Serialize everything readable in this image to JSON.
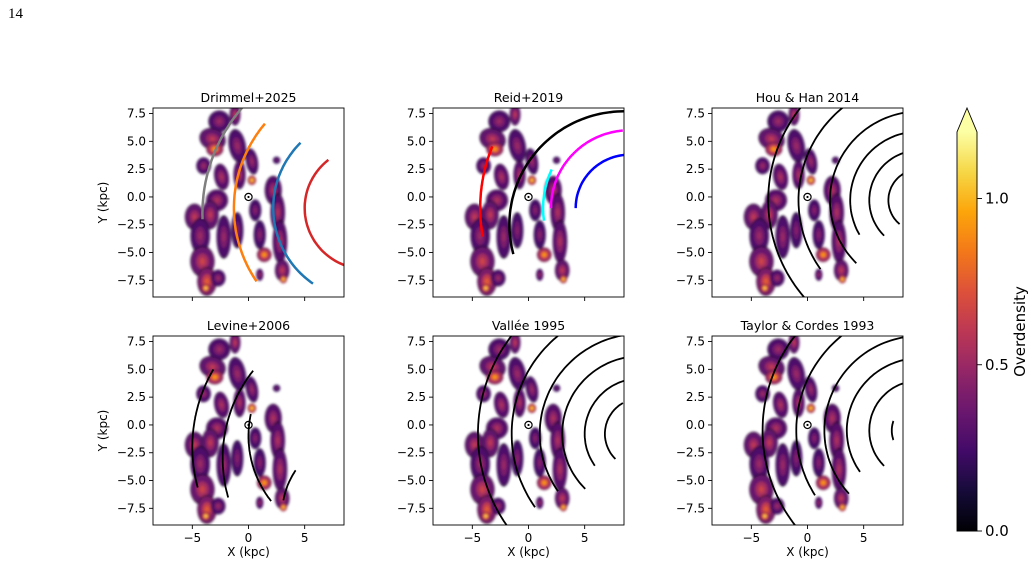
{
  "page": {
    "number": "14"
  },
  "colors": {
    "background": "#ffffff",
    "axis": "#000000",
    "sun_marker": "#000000"
  },
  "colorbar": {
    "label": "Overdensity",
    "colormap": "inferno",
    "range": [
      0.0,
      1.2
    ],
    "extend": "max",
    "ticks": [
      {
        "value": 0.0,
        "label": "0.0"
      },
      {
        "value": 0.5,
        "label": "0.5"
      },
      {
        "value": 1.0,
        "label": "1.0"
      }
    ]
  },
  "chart_data": [
    {
      "type": "heatmap",
      "title": "Drimmel+2025",
      "xlabel": "",
      "ylabel": "Y (kpc)",
      "xlim": [
        -8.5,
        8.5
      ],
      "ylim": [
        -9,
        8
      ],
      "xticks": [
        {
          "value": -5,
          "label": "−5"
        },
        {
          "value": 0,
          "label": "0"
        },
        {
          "value": 5,
          "label": "5"
        }
      ],
      "yticks": [
        {
          "value": 7.5,
          "label": "7.5"
        },
        {
          "value": 5.0,
          "label": "5.0"
        },
        {
          "value": 2.5,
          "label": "2.5"
        },
        {
          "value": 0.0,
          "label": "0.0"
        },
        {
          "value": -2.5,
          "label": "−2.5"
        },
        {
          "value": -5.0,
          "label": "−5.0"
        },
        {
          "value": -7.5,
          "label": "−7.5"
        }
      ],
      "sun": [
        0,
        0
      ],
      "arms": [
        {
          "color": "#7f7f7f",
          "width": 2.5,
          "dashed_from": 135,
          "c": [
            10.5,
            -1.5
          ],
          "r": 14.6,
          "from": 182,
          "to": 135
        },
        {
          "color": "#ff7f0e",
          "width": 2.5,
          "dashed_from": 140,
          "c": [
            10.5,
            -1.0
          ],
          "r": 11.8,
          "from": 214,
          "to": 140
        },
        {
          "color": "#1f77b4",
          "width": 2.5,
          "dashed_from": 135,
          "c": [
            10.5,
            -1.0
          ],
          "r": 8.3,
          "from": 235,
          "to": 135
        },
        {
          "color": "#d62728",
          "width": 2.5,
          "dashed_from": 128,
          "c": [
            10.5,
            -1.0
          ],
          "r": 5.5,
          "from": 265,
          "to": 128
        }
      ]
    },
    {
      "type": "heatmap",
      "title": "Reid+2019",
      "xlabel": "",
      "ylabel": "",
      "xlim": [
        -8.5,
        8.5
      ],
      "ylim": [
        -9,
        8
      ],
      "xticks": [
        {
          "value": -5,
          "label": "−5"
        },
        {
          "value": 0,
          "label": "0"
        },
        {
          "value": 5,
          "label": "5"
        }
      ],
      "yticks": [
        {
          "value": 7.5,
          "label": "7.5"
        },
        {
          "value": 5.0,
          "label": "5.0"
        },
        {
          "value": 2.5,
          "label": "2.5"
        },
        {
          "value": 0.0,
          "label": "0.0"
        },
        {
          "value": -2.5,
          "label": "−2.5"
        },
        {
          "value": -5.0,
          "label": "−5.0"
        },
        {
          "value": -7.5,
          "label": "−7.5"
        }
      ],
      "sun": [
        0,
        0
      ],
      "arms": [
        {
          "color": "#ff0000",
          "width": 2.5,
          "c": [
            10.5,
            -1.0
          ],
          "r": 14.8,
          "from": 190,
          "to": 158
        },
        {
          "color": "#000000",
          "width": 2.5,
          "c": [
            8.5,
            -2.5
          ],
          "r": 10.2,
          "from": 195,
          "to": 90
        },
        {
          "color": "#00ffff",
          "width": 2.5,
          "c": [
            9.5,
            -1.0
          ],
          "r": 8.2,
          "from": 188,
          "to": 155
        },
        {
          "color": "#ff00ff",
          "width": 2.5,
          "c": [
            9.0,
            -1.0
          ],
          "r": 7.0,
          "from": 180,
          "to": 95
        },
        {
          "color": "#0000ff",
          "width": 2.5,
          "c": [
            9.0,
            -1.0
          ],
          "r": 4.8,
          "from": 180,
          "to": 95
        }
      ]
    },
    {
      "type": "heatmap",
      "title": "Hou & Han 2014",
      "xlabel": "",
      "ylabel": "",
      "xlim": [
        -8.5,
        8.5
      ],
      "ylim": [
        -9,
        8
      ],
      "xticks": [
        {
          "value": -5,
          "label": "−5"
        },
        {
          "value": 0,
          "label": "0"
        },
        {
          "value": 5,
          "label": "5"
        }
      ],
      "yticks": [
        {
          "value": 7.5,
          "label": "7.5"
        },
        {
          "value": 5.0,
          "label": "5.0"
        },
        {
          "value": 2.5,
          "label": "2.5"
        },
        {
          "value": 0.0,
          "label": "0.0"
        },
        {
          "value": -2.5,
          "label": "−2.5"
        },
        {
          "value": -5.0,
          "label": "−5.0"
        },
        {
          "value": -7.5,
          "label": "−7.5"
        }
      ],
      "sun": [
        0,
        0
      ],
      "arms": [
        {
          "color": "#000000",
          "width": 1.8,
          "c": [
            10.0,
            -0.3
          ],
          "r": 13.5,
          "from": 222,
          "to": 110
        },
        {
          "color": "#000000",
          "width": 1.8,
          "c": [
            10.0,
            -0.3
          ],
          "r": 10.8,
          "from": 215,
          "to": 100
        },
        {
          "color": "#000000",
          "width": 1.8,
          "c": [
            10.0,
            -0.3
          ],
          "r": 8.0,
          "from": 225,
          "to": 95
        },
        {
          "color": "#000000",
          "width": 1.8,
          "c": [
            10.0,
            -0.3
          ],
          "r": 6.2,
          "from": 210,
          "to": 95
        },
        {
          "color": "#000000",
          "width": 1.8,
          "c": [
            10.0,
            -0.3
          ],
          "r": 4.5,
          "from": 225,
          "to": 95
        },
        {
          "color": "#000000",
          "width": 1.8,
          "c": [
            10.0,
            -0.3
          ],
          "r": 2.8,
          "from": 230,
          "to": 100
        }
      ]
    },
    {
      "type": "heatmap",
      "title": "Levine+2006",
      "xlabel": "X (kpc)",
      "ylabel": "Y (kpc)",
      "xlim": [
        -8.5,
        8.5
      ],
      "ylim": [
        -9,
        8
      ],
      "xticks": [
        {
          "value": -5,
          "label": "−5"
        },
        {
          "value": 0,
          "label": "0"
        },
        {
          "value": 5,
          "label": "5"
        }
      ],
      "yticks": [
        {
          "value": 7.5,
          "label": "7.5"
        },
        {
          "value": 5.0,
          "label": "5.0"
        },
        {
          "value": 2.5,
          "label": "2.5"
        },
        {
          "value": 0.0,
          "label": "0.0"
        },
        {
          "value": -2.5,
          "label": "−2.5"
        },
        {
          "value": -5.0,
          "label": "−5.0"
        },
        {
          "value": -7.5,
          "label": "−7.5"
        }
      ],
      "sun": [
        0,
        0
      ],
      "arms": [
        {
          "color": "#000000",
          "width": 1.8,
          "c": [
            9.0,
            -2.0
          ],
          "r": 14.0,
          "from": 195,
          "to": 150
        },
        {
          "color": "#000000",
          "width": 1.8,
          "c": [
            10.5,
            -3.0
          ],
          "r": 12.8,
          "from": 196,
          "to": 142
        },
        {
          "color": "#000000",
          "width": 1.8,
          "c": [
            9.5,
            -1.0
          ],
          "r": 9.5,
          "from": 218,
          "to": 168
        },
        {
          "color": "#000000",
          "width": 1.8,
          "c": [
            10.0,
            -8.0
          ],
          "r": 7.0,
          "from": 170,
          "to": 146
        }
      ]
    },
    {
      "type": "heatmap",
      "title": "Vallée 1995",
      "xlabel": "X (kpc)",
      "ylabel": "",
      "xlim": [
        -8.5,
        8.5
      ],
      "ylim": [
        -9,
        8
      ],
      "xticks": [
        {
          "value": -5,
          "label": "−5"
        },
        {
          "value": 0,
          "label": "0"
        },
        {
          "value": 5,
          "label": "5"
        }
      ],
      "yticks": [
        {
          "value": 7.5,
          "label": "7.5"
        },
        {
          "value": 5.0,
          "label": "5.0"
        },
        {
          "value": 2.5,
          "label": "2.5"
        },
        {
          "value": 0.0,
          "label": "0.0"
        },
        {
          "value": -2.5,
          "label": "−2.5"
        },
        {
          "value": -5.0,
          "label": "−5.0"
        },
        {
          "value": -7.5,
          "label": "−7.5"
        }
      ],
      "sun": [
        0,
        0
      ],
      "arms": [
        {
          "color": "#000000",
          "width": 1.8,
          "c": [
            10.0,
            -0.8
          ],
          "r": 14.5,
          "from": 220,
          "to": 112
        },
        {
          "color": "#000000",
          "width": 1.8,
          "c": [
            10.0,
            -0.8
          ],
          "r": 11.5,
          "from": 215,
          "to": 100
        },
        {
          "color": "#000000",
          "width": 1.8,
          "c": [
            10.0,
            -0.8
          ],
          "r": 9.0,
          "from": 215,
          "to": 95
        },
        {
          "color": "#000000",
          "width": 1.8,
          "c": [
            10.0,
            -0.8
          ],
          "r": 7.0,
          "from": 225,
          "to": 95
        },
        {
          "color": "#000000",
          "width": 1.8,
          "c": [
            10.0,
            -0.8
          ],
          "r": 5.0,
          "from": 215,
          "to": 105
        },
        {
          "color": "#000000",
          "width": 1.8,
          "c": [
            10.0,
            -0.8
          ],
          "r": 3.2,
          "from": 225,
          "to": 120
        }
      ]
    },
    {
      "type": "heatmap",
      "title": "Taylor & Cordes 1993",
      "xlabel": "X (kpc)",
      "ylabel": "",
      "xlim": [
        -8.5,
        8.5
      ],
      "ylim": [
        -9,
        8
      ],
      "xticks": [
        {
          "value": -5,
          "label": "−5"
        },
        {
          "value": 0,
          "label": "0"
        },
        {
          "value": 5,
          "label": "5"
        }
      ],
      "yticks": [
        {
          "value": 7.5,
          "label": "7.5"
        },
        {
          "value": 5.0,
          "label": "5.0"
        },
        {
          "value": 2.5,
          "label": "2.5"
        },
        {
          "value": 0.0,
          "label": "0.0"
        },
        {
          "value": -2.5,
          "label": "−2.5"
        },
        {
          "value": -5.0,
          "label": "−5.0"
        },
        {
          "value": -7.5,
          "label": "−7.5"
        }
      ],
      "sun": [
        0,
        0
      ],
      "arms": [
        {
          "color": "#000000",
          "width": 1.8,
          "c": [
            10.0,
            -0.5
          ],
          "r": 14.0,
          "from": 222,
          "to": 112
        },
        {
          "color": "#000000",
          "width": 1.8,
          "c": [
            10.0,
            -0.5
          ],
          "r": 11.0,
          "from": 212,
          "to": 102
        },
        {
          "color": "#000000",
          "width": 1.8,
          "c": [
            10.0,
            -0.5
          ],
          "r": 8.5,
          "from": 222,
          "to": 95
        },
        {
          "color": "#000000",
          "width": 1.8,
          "c": [
            10.0,
            -0.5
          ],
          "r": 6.5,
          "from": 215,
          "to": 100
        },
        {
          "color": "#000000",
          "width": 1.8,
          "c": [
            10.0,
            -0.5
          ],
          "r": 4.5,
          "from": 225,
          "to": 110
        },
        {
          "color": "#000000",
          "width": 1.8,
          "c": [
            10.0,
            -0.5
          ],
          "r": 2.5,
          "from": 200,
          "to": 160
        }
      ]
    }
  ],
  "density_blobs": [
    [
      -2.6,
      6.8,
      0.9,
      0.9,
      0,
      0.5
    ],
    [
      -1.2,
      7.4,
      0.45,
      0.9,
      0,
      0.6
    ],
    [
      -3.2,
      5.2,
      1.1,
      0.9,
      -20,
      0.6
    ],
    [
      -3.0,
      4.3,
      0.7,
      0.6,
      0,
      0.95
    ],
    [
      -1.0,
      4.6,
      0.7,
      1.4,
      10,
      0.5
    ],
    [
      -0.8,
      2.0,
      0.5,
      1.2,
      0,
      0.55
    ],
    [
      0.3,
      3.2,
      0.5,
      1.1,
      10,
      0.5
    ],
    [
      0.3,
      1.5,
      0.35,
      0.4,
      0,
      1.1
    ],
    [
      -2.4,
      1.8,
      0.6,
      1.1,
      10,
      0.55
    ],
    [
      -4.0,
      2.8,
      0.6,
      0.7,
      0,
      0.5
    ],
    [
      -2.8,
      -0.3,
      0.9,
      0.9,
      0,
      0.55
    ],
    [
      -4.8,
      -1.8,
      0.8,
      1.1,
      0,
      0.6
    ],
    [
      -3.4,
      -1.6,
      0.7,
      1.2,
      0,
      0.6
    ],
    [
      -4.3,
      -3.5,
      0.8,
      1.5,
      0,
      0.5
    ],
    [
      -2.2,
      -3.6,
      0.6,
      1.8,
      0,
      0.5
    ],
    [
      -1.0,
      -3.0,
      0.5,
      1.5,
      0,
      0.45
    ],
    [
      -4.1,
      -5.8,
      1.0,
      1.3,
      0,
      0.65
    ],
    [
      -3.7,
      -7.6,
      0.8,
      1.2,
      0,
      0.75
    ],
    [
      -3.8,
      -8.2,
      0.35,
      0.35,
      0,
      1.15
    ],
    [
      -2.7,
      -7.3,
      0.6,
      0.7,
      0,
      0.5
    ],
    [
      0.6,
      -1.2,
      0.5,
      0.9,
      0,
      0.45
    ],
    [
      1.0,
      -3.4,
      0.5,
      1.2,
      0,
      0.45
    ],
    [
      1.4,
      -5.2,
      0.6,
      0.6,
      0,
      0.95
    ],
    [
      1.0,
      -7.0,
      0.3,
      0.5,
      0,
      0.5
    ],
    [
      2.2,
      0.6,
      0.7,
      1.2,
      0,
      0.55
    ],
    [
      2.6,
      -1.4,
      0.6,
      1.6,
      0,
      0.55
    ],
    [
      2.8,
      -4.0,
      0.6,
      1.8,
      0,
      0.55
    ],
    [
      3.0,
      -6.6,
      0.6,
      0.9,
      0,
      0.6
    ],
    [
      3.1,
      -7.4,
      0.3,
      0.35,
      0,
      1.1
    ],
    [
      2.5,
      3.3,
      0.3,
      0.3,
      0,
      0.4
    ]
  ]
}
